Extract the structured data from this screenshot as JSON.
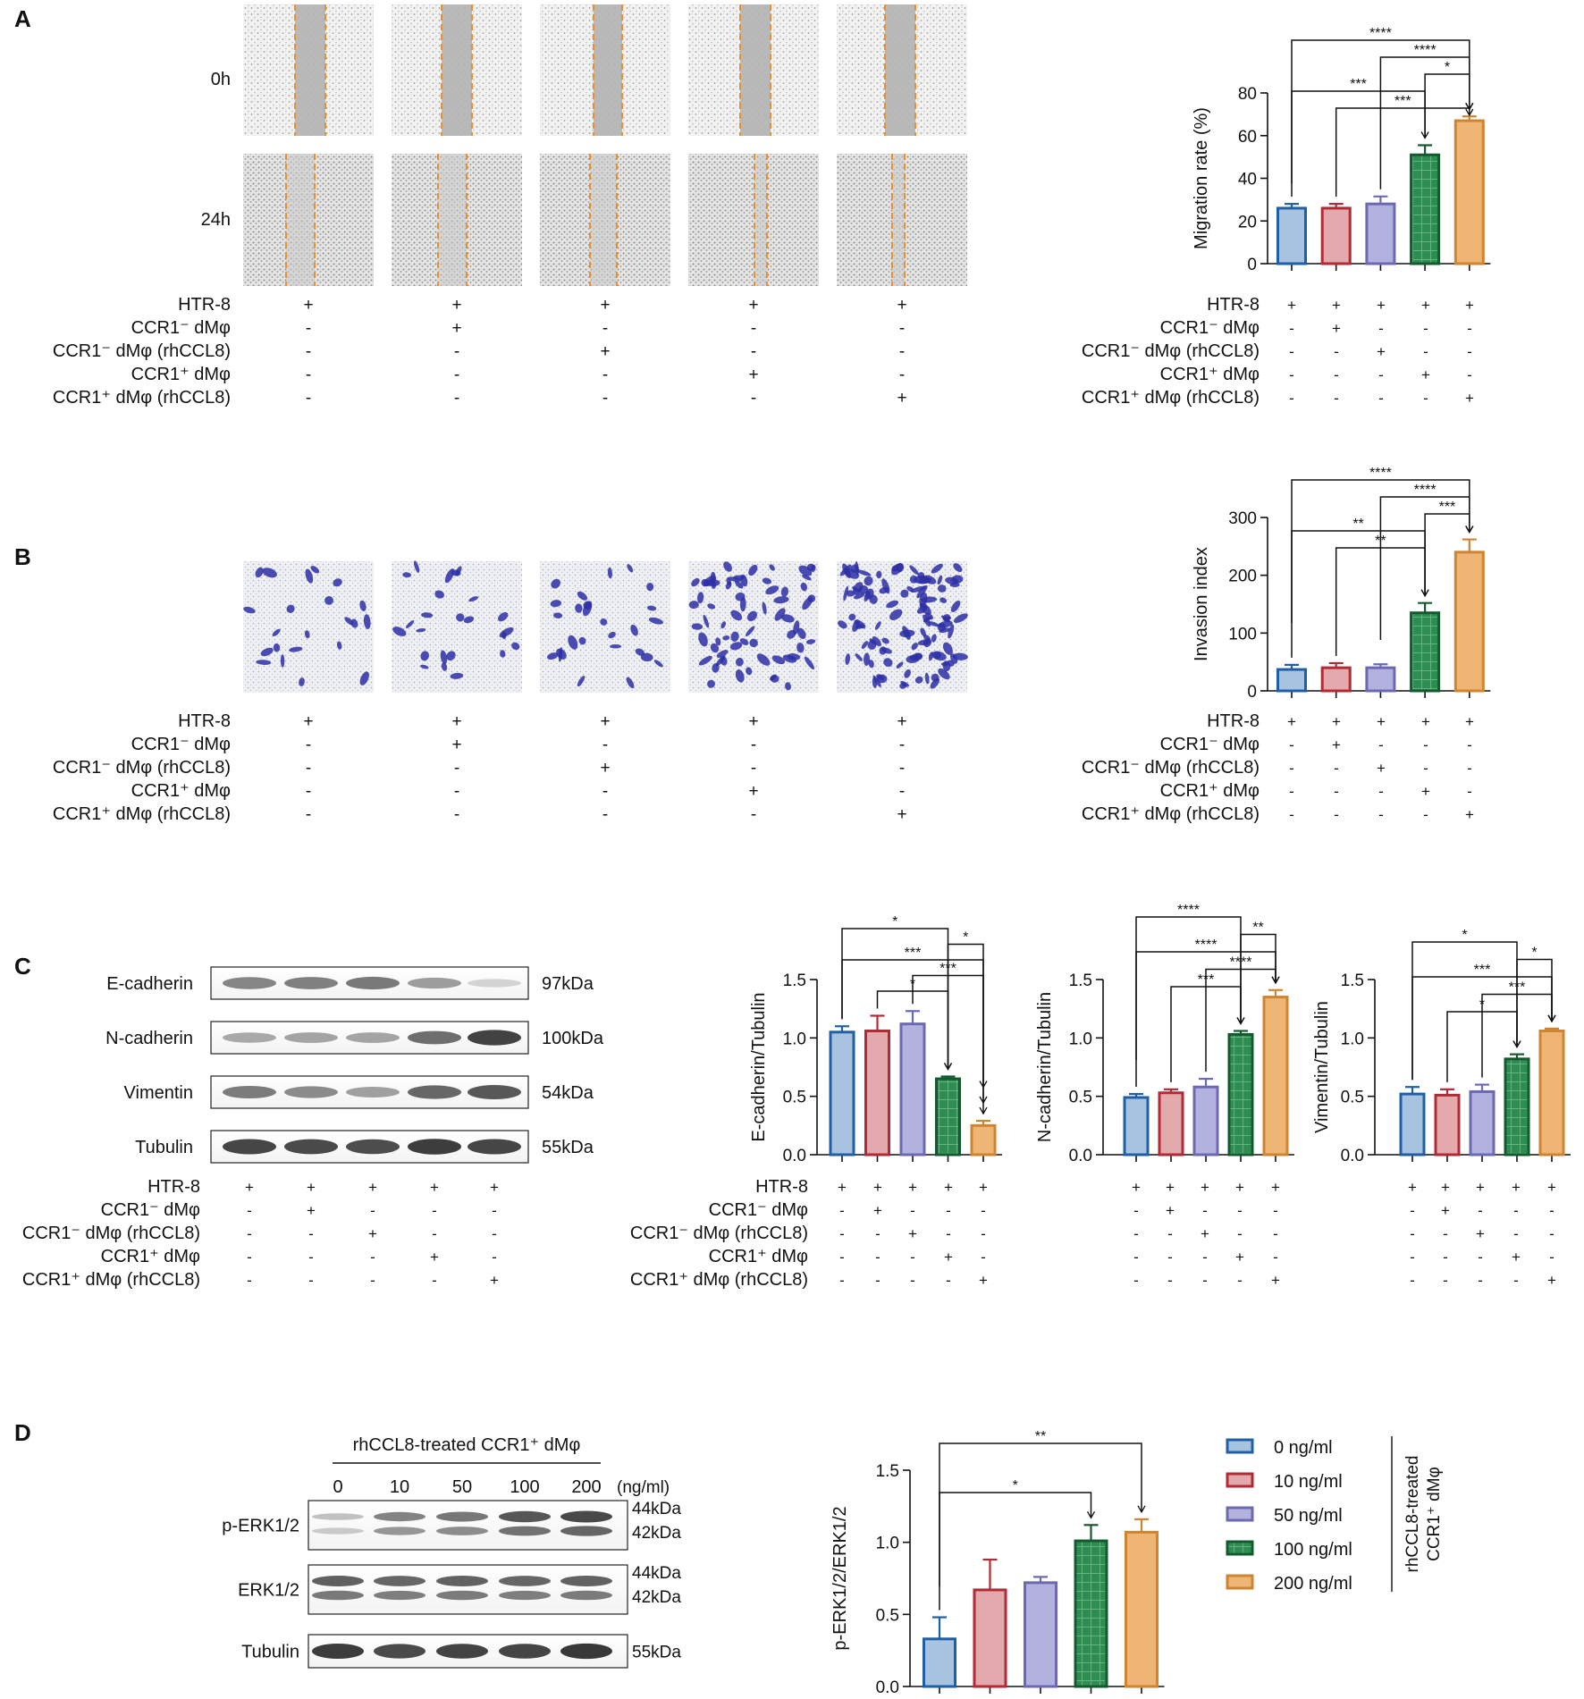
{
  "panels": {
    "A": "A",
    "B": "B",
    "C": "C",
    "D": "D"
  },
  "colors": {
    "blue_fill": "#a7c3e0",
    "blue_edge": "#1f5fa8",
    "red_fill": "#e3a9ac",
    "red_edge": "#b22a35",
    "purple_fill": "#b3b1dd",
    "purple_edge": "#6c69b3",
    "green_fill": "#2e8e52",
    "green_edge": "#15592f",
    "orange_fill": "#efb574",
    "orange_edge": "#cf8432"
  },
  "group_rows": [
    "HTR-8",
    "CCR1⁻ dMφ",
    "CCR1⁻ dMφ (rhCCL8)",
    "CCR1⁺ dMφ",
    "CCR1⁺ dMφ (rhCCL8)"
  ],
  "group_signs": [
    [
      "+",
      "+",
      "+",
      "+",
      "+"
    ],
    [
      "-",
      "+",
      "-",
      "-",
      "-"
    ],
    [
      "-",
      "-",
      "+",
      "-",
      "-"
    ],
    [
      "-",
      "-",
      "-",
      "+",
      "-"
    ],
    [
      "-",
      "-",
      "-",
      "-",
      "+"
    ]
  ],
  "wound": {
    "rows": [
      "0h",
      "24h"
    ]
  },
  "western_c": {
    "bands": [
      {
        "name": "E-cadherin",
        "size": "97kDa",
        "intensity": [
          0.55,
          0.58,
          0.62,
          0.42,
          0.12
        ]
      },
      {
        "name": "N-cadherin",
        "size": "100kDa",
        "intensity": [
          0.35,
          0.38,
          0.38,
          0.68,
          0.92
        ]
      },
      {
        "name": "Vimentin",
        "size": "54kDa",
        "intensity": [
          0.6,
          0.52,
          0.4,
          0.72,
          0.8
        ]
      },
      {
        "name": "Tubulin",
        "size": "55kDa",
        "intensity": [
          0.9,
          0.88,
          0.86,
          0.95,
          0.9
        ]
      }
    ]
  },
  "western_d": {
    "header": "rhCCL8-treated CCR1⁺ dMφ",
    "doses": [
      "0",
      "10",
      "50",
      "100",
      "200"
    ],
    "unit": "(ng/ml)",
    "blots": [
      {
        "name": "p-ERK1/2",
        "sizes": [
          "44kDa",
          "42kDa"
        ],
        "intensity": [
          0.2,
          0.55,
          0.62,
          0.8,
          0.88
        ]
      },
      {
        "name": "ERK1/2",
        "sizes": [
          "44kDa",
          "42kDa"
        ],
        "intensity": [
          0.75,
          0.72,
          0.74,
          0.72,
          0.74
        ]
      },
      {
        "name": "Tubulin",
        "sizes": [
          "55kDa"
        ],
        "intensity": [
          0.9,
          0.82,
          0.86,
          0.85,
          0.92
        ]
      }
    ]
  },
  "legend_d": {
    "items": [
      "0 ng/ml",
      "10 ng/ml",
      "50 ng/ml",
      "100 ng/ml",
      "200 ng/ml"
    ],
    "side_label": [
      "rhCCL8-treated",
      "CCR1⁺ dMφ"
    ]
  },
  "chart_data": [
    {
      "id": "migration",
      "type": "bar",
      "ylabel": "Migration rate (%)",
      "ylim": [
        0,
        80
      ],
      "yticks": [
        "0",
        "20",
        "40",
        "60",
        "80"
      ],
      "values": [
        26,
        26,
        28,
        51,
        67
      ],
      "errors": [
        2,
        2,
        3.5,
        4.5,
        2
      ],
      "significance": [
        {
          "from": 1,
          "to": 4,
          "label": "***"
        },
        {
          "from": 0,
          "to": 3,
          "label": "***"
        },
        {
          "from": 3,
          "to": 4,
          "label": "*"
        },
        {
          "from": 2,
          "to": 4,
          "label": "****"
        },
        {
          "from": 0,
          "to": 4,
          "label": "****"
        }
      ]
    },
    {
      "id": "invasion",
      "type": "bar",
      "ylabel": "Invasion index",
      "ylim": [
        0,
        300
      ],
      "yticks": [
        "0",
        "100",
        "200",
        "300"
      ],
      "values": [
        37,
        40,
        40,
        135,
        240
      ],
      "errors": [
        8,
        8,
        6,
        17,
        22
      ],
      "significance": [
        {
          "from": 1,
          "to": 3,
          "label": "**"
        },
        {
          "from": 0,
          "to": 3,
          "label": "**"
        },
        {
          "from": 3,
          "to": 4,
          "label": "***"
        },
        {
          "from": 2,
          "to": 4,
          "label": "****"
        },
        {
          "from": 0,
          "to": 4,
          "label": "****"
        }
      ]
    },
    {
      "id": "ecad",
      "type": "bar",
      "ylabel": "E-cadherin/Tubulin",
      "ylim": [
        0,
        1.5
      ],
      "yticks": [
        "0.0",
        "0.5",
        "1.0",
        "1.5"
      ],
      "values": [
        1.05,
        1.06,
        1.12,
        0.65,
        0.25
      ],
      "errors": [
        0.05,
        0.13,
        0.11,
        0.02,
        0.04
      ],
      "significance": [
        {
          "from": 1,
          "to": 3,
          "label": "*"
        },
        {
          "from": 2,
          "to": 4,
          "label": "***"
        },
        {
          "from": 0,
          "to": 4,
          "label": "***"
        },
        {
          "from": 3,
          "to": 4,
          "label": "*"
        },
        {
          "from": 0,
          "to": 3,
          "label": "*"
        }
      ]
    },
    {
      "id": "ncad",
      "type": "bar",
      "ylabel": "N-cadherin/Tubulin",
      "ylim": [
        0,
        1.5
      ],
      "yticks": [
        "0.0",
        "0.5",
        "1.0",
        "1.5"
      ],
      "values": [
        0.49,
        0.53,
        0.58,
        1.03,
        1.35
      ],
      "errors": [
        0.03,
        0.03,
        0.07,
        0.03,
        0.06
      ],
      "significance": [
        {
          "from": 1,
          "to": 3,
          "label": "***"
        },
        {
          "from": 2,
          "to": 4,
          "label": "****"
        },
        {
          "from": 0,
          "to": 4,
          "label": "****"
        },
        {
          "from": 3,
          "to": 4,
          "label": "**"
        },
        {
          "from": 0,
          "to": 3,
          "label": "****"
        }
      ]
    },
    {
      "id": "vim",
      "type": "bar",
      "ylabel": "Vimentin/Tubulin",
      "ylim": [
        0,
        1.5
      ],
      "yticks": [
        "0.0",
        "0.5",
        "1.0",
        "1.5"
      ],
      "values": [
        0.52,
        0.51,
        0.54,
        0.82,
        1.06
      ],
      "errors": [
        0.06,
        0.05,
        0.06,
        0.04,
        0.02
      ],
      "significance": [
        {
          "from": 1,
          "to": 3,
          "label": "*"
        },
        {
          "from": 2,
          "to": 4,
          "label": "***"
        },
        {
          "from": 0,
          "to": 4,
          "label": "***"
        },
        {
          "from": 3,
          "to": 4,
          "label": "*"
        },
        {
          "from": 0,
          "to": 3,
          "label": "*"
        }
      ]
    },
    {
      "id": "perk",
      "type": "bar",
      "ylabel": "p-ERK1/2/ERK1/2",
      "ylim": [
        0,
        1.5
      ],
      "yticks": [
        "0.0",
        "0.5",
        "1.0",
        "1.5"
      ],
      "values": [
        0.33,
        0.67,
        0.72,
        1.01,
        1.07
      ],
      "errors": [
        0.15,
        0.21,
        0.04,
        0.11,
        0.09
      ],
      "significance": [
        {
          "from": 0,
          "to": 3,
          "label": "*"
        },
        {
          "from": 0,
          "to": 4,
          "label": "**"
        }
      ]
    }
  ]
}
